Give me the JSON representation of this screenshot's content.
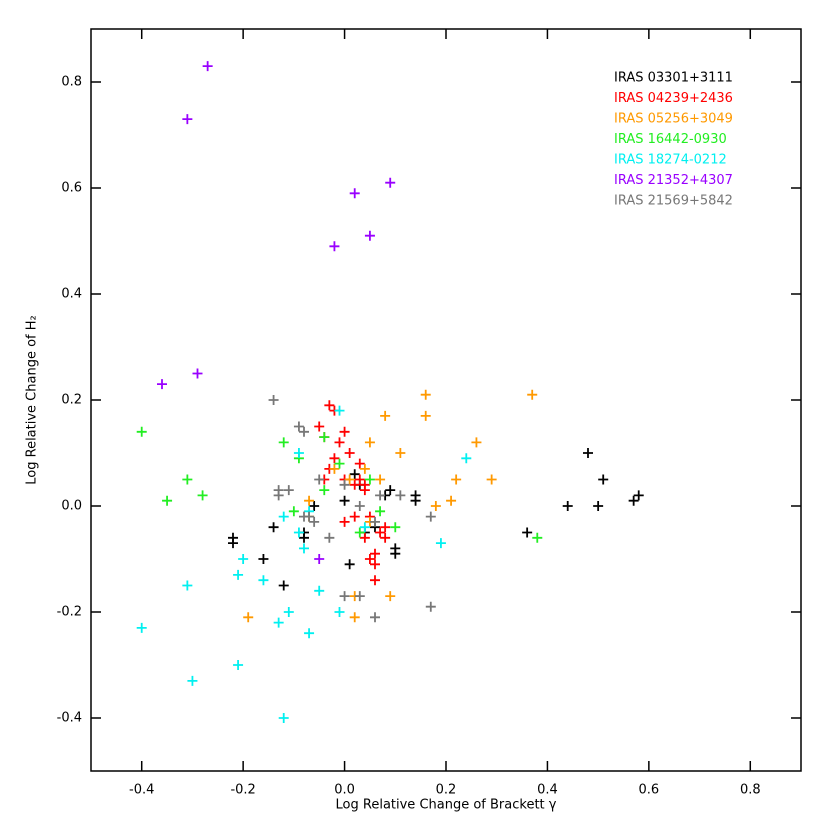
{
  "chart_data": {
    "type": "scatter",
    "xlabel": "Log Relative Change of Brackett γ",
    "ylabel": "Log Relative Change of H₂",
    "xlim": [
      -0.5,
      0.9
    ],
    "ylim": [
      -0.5,
      0.9
    ],
    "xticks": [
      -0.4,
      -0.2,
      {
        "value": 0,
        "label": "0.0"
      },
      0.2,
      0.4,
      0.6,
      0.8
    ],
    "yticks": [
      -0.4,
      -0.2,
      {
        "value": 0,
        "label": "0.0"
      },
      0.2,
      0.4,
      0.6,
      0.8
    ],
    "legend": "upper right",
    "series": [
      {
        "name": "IRAS 03301+3111",
        "color": "#000000",
        "x": [
          -0.22,
          -0.22,
          -0.16,
          -0.14,
          -0.12,
          -0.08,
          -0.08,
          -0.06,
          0.0,
          0.01,
          0.02,
          0.03,
          0.04,
          0.06,
          0.08,
          0.09,
          0.1,
          0.1,
          0.14,
          0.14,
          0.36,
          0.44,
          0.48,
          0.5,
          0.51,
          0.57,
          0.58
        ],
        "y": [
          -0.07,
          -0.06,
          -0.1,
          -0.04,
          -0.15,
          -0.05,
          -0.06,
          0.0,
          0.01,
          -0.11,
          0.06,
          0.04,
          -0.05,
          -0.04,
          0.02,
          0.03,
          -0.09,
          -0.08,
          0.01,
          0.02,
          -0.05,
          0.0,
          0.1,
          0.0,
          0.05,
          0.01,
          0.02
        ]
      },
      {
        "name": "IRAS 04239+2436",
        "color": "#ff0000",
        "x": [
          -0.03,
          -0.02,
          -0.05,
          -0.04,
          0.0,
          -0.01,
          -0.02,
          0.01,
          0.03,
          -0.03,
          -0.04,
          0.0,
          0.02,
          0.04,
          0.03,
          0.04,
          0.0,
          0.02,
          0.04,
          0.05,
          0.06,
          0.06,
          0.07,
          0.08,
          0.08,
          0.06,
          0.05
        ],
        "y": [
          0.19,
          0.18,
          0.15,
          0.13,
          0.14,
          0.12,
          0.09,
          0.1,
          0.08,
          0.07,
          0.05,
          0.05,
          0.04,
          0.04,
          0.05,
          0.03,
          -0.03,
          -0.02,
          -0.06,
          -0.1,
          -0.09,
          -0.11,
          -0.05,
          -0.06,
          -0.04,
          -0.14,
          -0.02
        ]
      },
      {
        "name": "IRAS 05256+3049",
        "color": "#ff9900",
        "x": [
          0.37,
          0.16,
          0.16,
          0.08,
          0.26,
          0.11,
          0.05,
          0.04,
          0.22,
          0.29,
          0.07,
          0.21,
          0.18,
          -0.07,
          -0.07,
          0.01,
          -0.02,
          0.09,
          0.02,
          0.02,
          -0.19,
          0.05
        ],
        "y": [
          0.21,
          0.21,
          0.17,
          0.17,
          0.12,
          0.1,
          0.12,
          0.07,
          0.05,
          0.05,
          0.05,
          0.01,
          0.0,
          0.01,
          -0.02,
          0.05,
          0.07,
          -0.17,
          -0.17,
          -0.21,
          -0.21,
          -0.03
        ]
      },
      {
        "name": "IRAS 16442-0930",
        "color": "#22ee22",
        "x": [
          -0.4,
          -0.31,
          -0.28,
          -0.35,
          -0.12,
          -0.09,
          -0.04,
          -0.01,
          -0.04,
          0.05,
          0.1,
          0.07,
          0.03,
          0.38,
          -0.1
        ],
        "y": [
          0.14,
          0.05,
          0.02,
          0.01,
          0.12,
          0.09,
          0.13,
          0.08,
          0.03,
          0.05,
          -0.04,
          -0.01,
          -0.05,
          -0.06,
          -0.01
        ]
      },
      {
        "name": "IRAS 18274-0212",
        "color": "#00f0f0",
        "x": [
          -0.01,
          -0.09,
          0.24,
          -0.08,
          -0.12,
          -0.07,
          -0.09,
          -0.2,
          -0.21,
          -0.16,
          -0.31,
          -0.05,
          -0.13,
          -0.11,
          -0.01,
          -0.07,
          -0.4,
          -0.21,
          -0.3,
          -0.12,
          0.19,
          0.04
        ],
        "y": [
          0.18,
          0.1,
          0.09,
          -0.08,
          -0.02,
          -0.01,
          -0.05,
          -0.1,
          -0.13,
          -0.14,
          -0.15,
          -0.16,
          -0.22,
          -0.2,
          -0.2,
          -0.24,
          -0.23,
          -0.3,
          -0.33,
          -0.4,
          -0.07,
          -0.04
        ]
      },
      {
        "name": "IRAS 21352+4307",
        "color": "#9900ff",
        "x": [
          -0.27,
          -0.31,
          0.02,
          0.09,
          0.05,
          -0.02,
          -0.36,
          -0.29,
          -0.05
        ],
        "y": [
          0.83,
          0.73,
          0.59,
          0.61,
          0.51,
          0.49,
          0.23,
          0.25,
          -0.1
        ]
      },
      {
        "name": "IRAS 21569+5842",
        "color": "#777777",
        "x": [
          -0.14,
          -0.09,
          -0.08,
          -0.13,
          -0.13,
          -0.11,
          -0.05,
          -0.08,
          -0.06,
          -0.07,
          0.0,
          0.03,
          0.07,
          0.11,
          0.17,
          -0.03,
          0.0,
          0.03,
          0.06,
          0.06,
          0.17
        ],
        "y": [
          0.2,
          0.15,
          0.14,
          0.02,
          0.03,
          0.03,
          0.05,
          -0.02,
          -0.03,
          -0.02,
          0.04,
          0.0,
          0.02,
          0.02,
          -0.02,
          -0.06,
          -0.17,
          -0.17,
          -0.03,
          -0.21,
          -0.19
        ]
      }
    ]
  }
}
